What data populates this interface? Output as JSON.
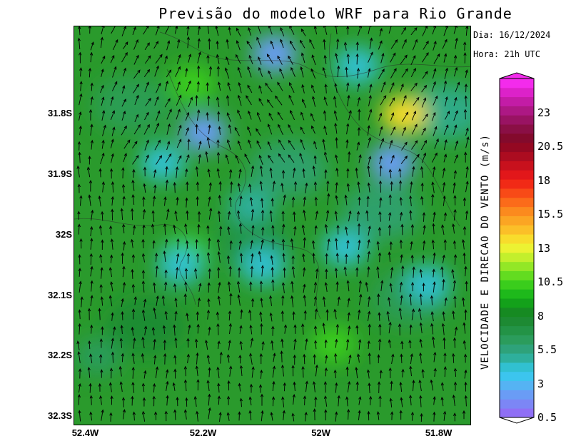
{
  "title": "Previsão do modelo WRF para Rio Grande",
  "info": {
    "date": "Dia: 16/12/2024",
    "hour": "Hora: 21h UTC"
  },
  "axes": {
    "lat_range": [
      -32.315,
      -31.655
    ],
    "lon_range": [
      -52.42,
      -51.745
    ],
    "y_ticks": [
      {
        "value": -31.8,
        "label": "31.8S"
      },
      {
        "value": -31.9,
        "label": "31.9S"
      },
      {
        "value": -32.0,
        "label": "32S"
      },
      {
        "value": -32.1,
        "label": "32.1S"
      },
      {
        "value": -32.2,
        "label": "32.2S"
      },
      {
        "value": -32.3,
        "label": "32.3S"
      }
    ],
    "x_ticks": [
      {
        "value": -52.4,
        "label": "52.4W"
      },
      {
        "value": -52.2,
        "label": "52.2W"
      },
      {
        "value": -52.0,
        "label": "52W"
      },
      {
        "value": -51.8,
        "label": "51.8W"
      }
    ]
  },
  "field": {
    "background_color": "#2a9a2c",
    "wind_direction": "northward flow (southerly wind)",
    "speed_spots": [
      {
        "lon": -52.08,
        "lat": -31.7,
        "speed": 2.5
      },
      {
        "lon": -52.2,
        "lat": -31.83,
        "speed": 2.0
      },
      {
        "lon": -52.27,
        "lat": -31.88,
        "speed": 4.0
      },
      {
        "lon": -51.88,
        "lat": -31.88,
        "speed": 2.0
      },
      {
        "lon": -51.86,
        "lat": -31.8,
        "speed": 13.5
      },
      {
        "lon": -52.22,
        "lat": -31.75,
        "speed": 10.0
      },
      {
        "lon": -51.94,
        "lat": -31.72,
        "speed": 4.0
      },
      {
        "lon": -52.23,
        "lat": -32.03,
        "speed": 10.5
      },
      {
        "lon": -52.24,
        "lat": -32.05,
        "speed": 4.0
      },
      {
        "lon": -51.98,
        "lat": -32.18,
        "speed": 10.0
      },
      {
        "lon": -52.1,
        "lat": -32.05,
        "speed": 4.5
      },
      {
        "lon": -51.96,
        "lat": -32.02,
        "speed": 4.5
      },
      {
        "lon": -51.82,
        "lat": -32.08,
        "speed": 4.5
      },
      {
        "lon": -52.12,
        "lat": -31.95,
        "speed": 5.0
      },
      {
        "lon": -52.38,
        "lat": -32.2,
        "speed": 6.0
      }
    ]
  },
  "legend": {
    "title": "VELOCIDADE E DIRECAO DO VENTO (m/s)",
    "min": 0.5,
    "max": 25.5,
    "tick_labels": [
      "0.5",
      "3",
      "5.5",
      "8",
      "10.5",
      "13",
      "15.5",
      "18",
      "20.5",
      "23"
    ],
    "colors": [
      "#8f6ff5",
      "#7c86f5",
      "#6a9cf5",
      "#55b3f3",
      "#3cc5ee",
      "#31c0d0",
      "#2eaf9c",
      "#2ea27a",
      "#2b9c5c",
      "#239346",
      "#1d8a33",
      "#168a22",
      "#13a11a",
      "#1eb91b",
      "#3acd1c",
      "#63dc20",
      "#93e726",
      "#c3ef2c",
      "#ecf232",
      "#f8dc2c",
      "#fbbf28",
      "#fba523",
      "#fb8a1e",
      "#fb6b1a",
      "#f84a17",
      "#f12a16",
      "#e2171a",
      "#c8111d",
      "#ac0c20",
      "#940822",
      "#830a2c",
      "#8a0f45",
      "#991363",
      "#ad1884",
      "#c31ca6",
      "#dc22c9",
      "#f32bec"
    ]
  }
}
